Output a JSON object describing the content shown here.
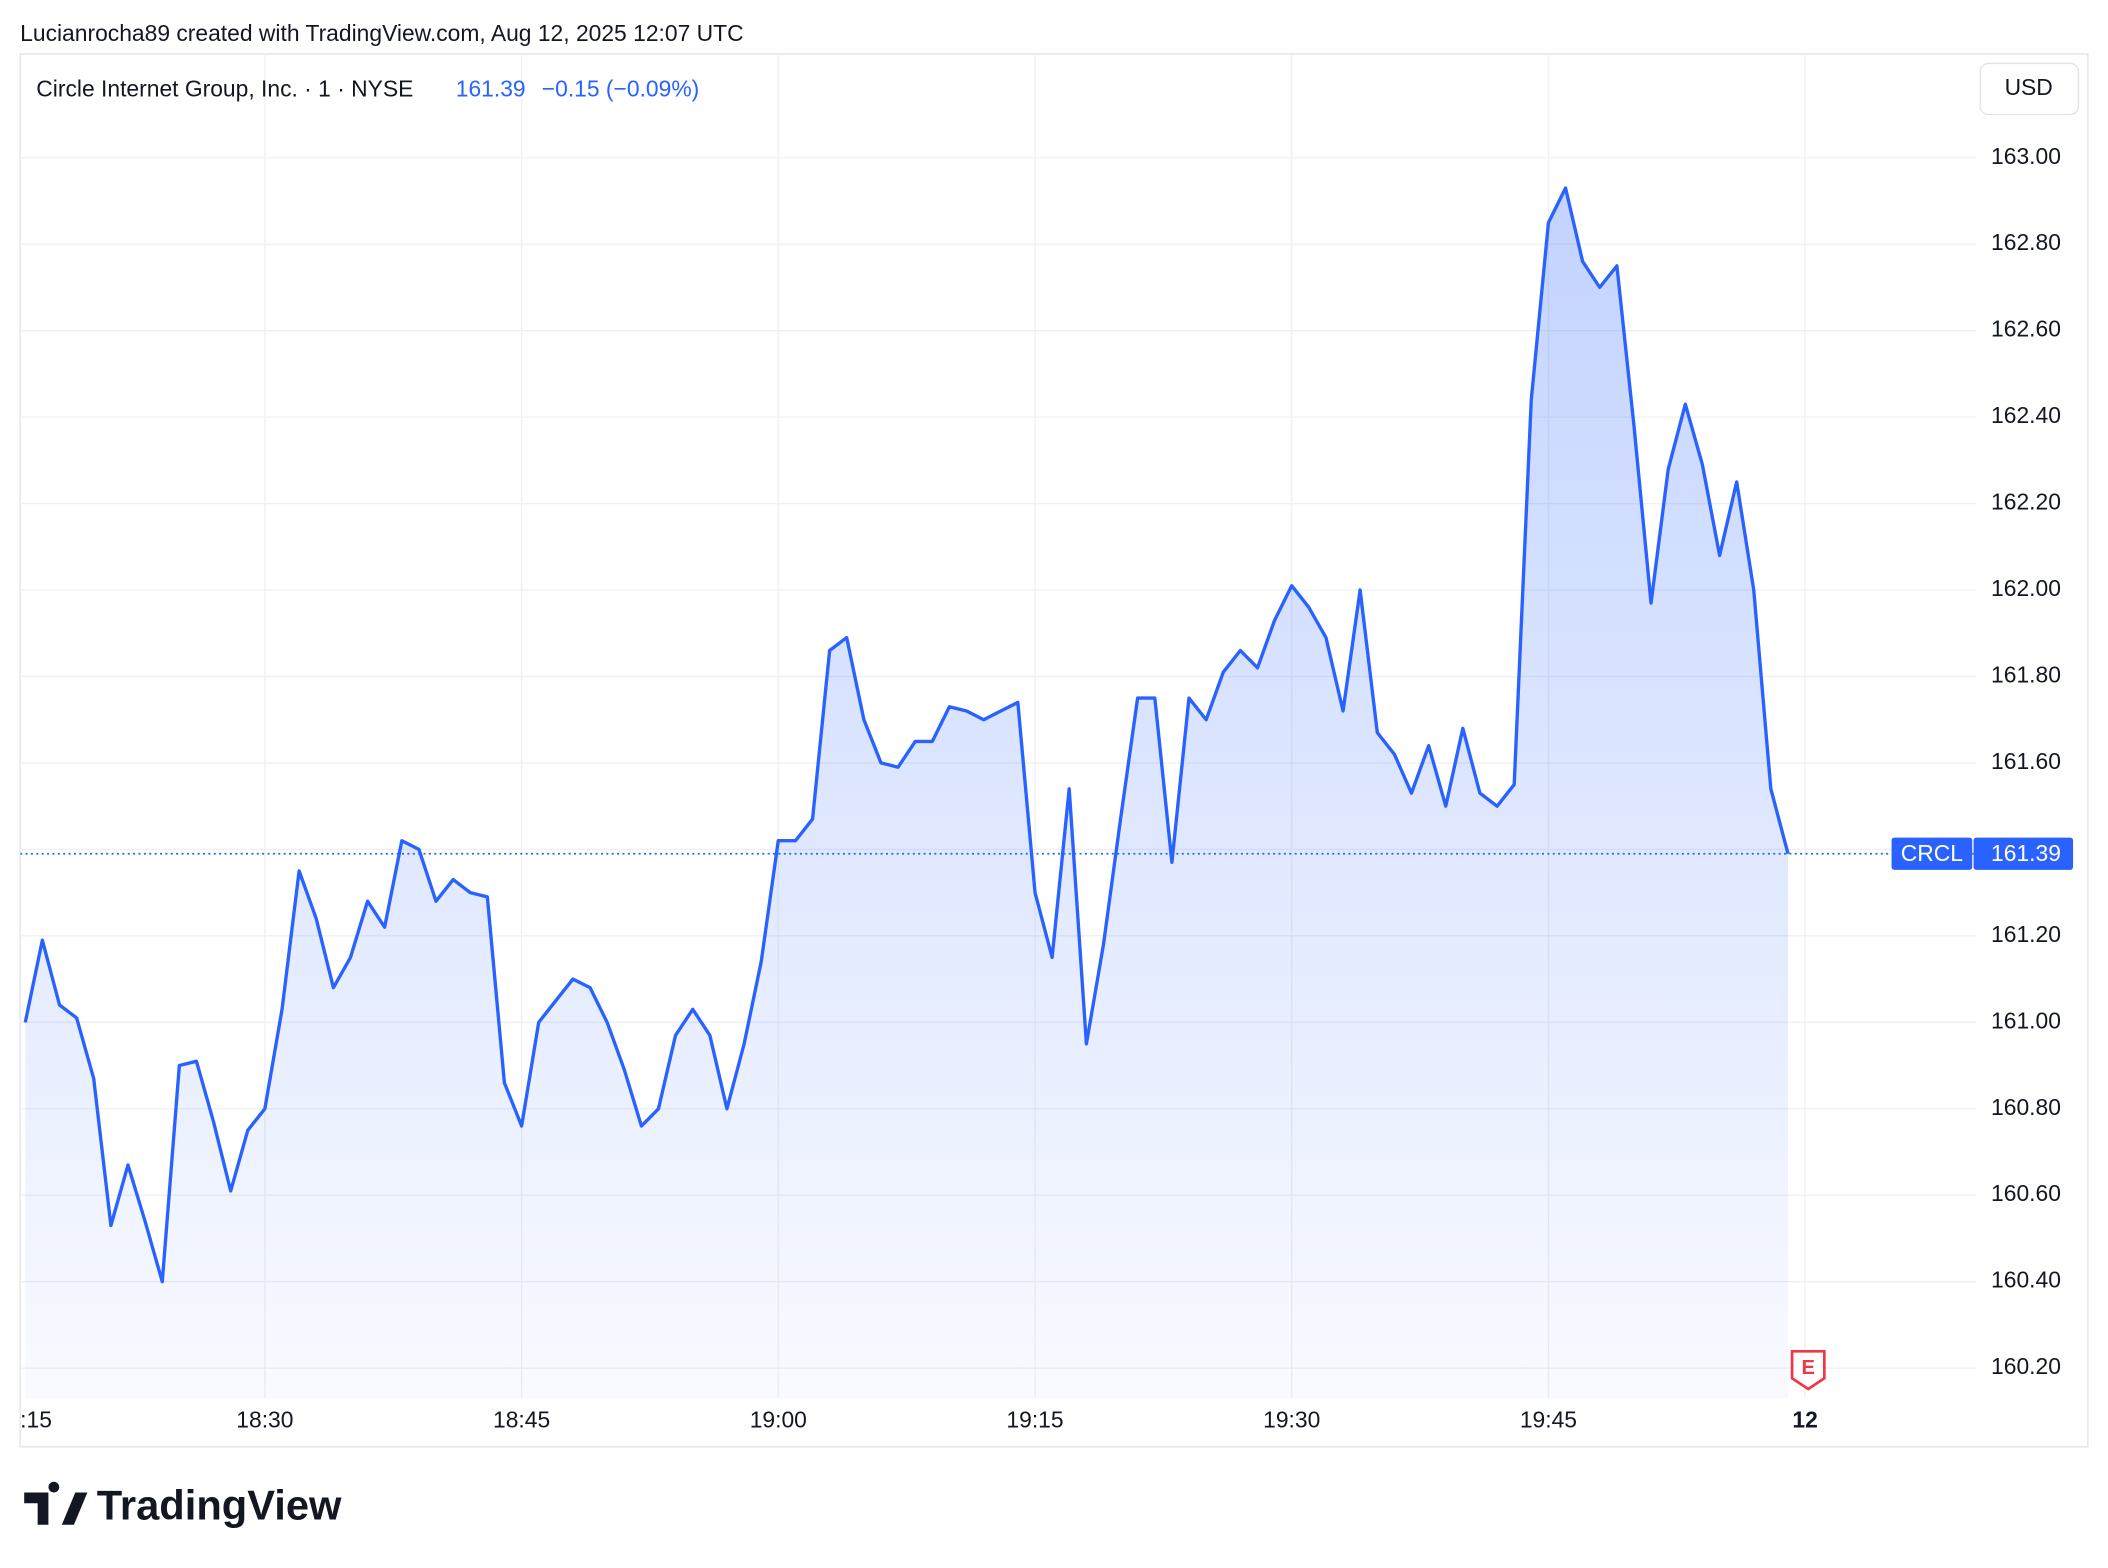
{
  "header": {
    "attribution": "Lucianrocha89 created with TradingView.com, Aug 12, 2025 12:07 UTC"
  },
  "logo": {
    "text": "TradingView"
  },
  "chart_data": {
    "type": "area",
    "symbol_name": "Circle Internet Group, Inc. · 1 · NYSE",
    "change": "−0.15 (−0.09%)",
    "currency": "USD",
    "ticker": "CRCL",
    "earnings_marker": "E",
    "x": [
      1096,
      1097,
      1098,
      1099,
      1100,
      1101,
      1102,
      1103,
      1104,
      1105,
      1106,
      1107,
      1108,
      1109,
      1110,
      1111,
      1112,
      1113,
      1114,
      1115,
      1116,
      1117,
      1118,
      1119,
      1120,
      1121,
      1122,
      1123,
      1124,
      1125,
      1126,
      1127,
      1128,
      1129,
      1130,
      1131,
      1132,
      1133,
      1134,
      1135,
      1136,
      1137,
      1138,
      1139,
      1140,
      1141,
      1142,
      1143,
      1144,
      1145,
      1146,
      1147,
      1148,
      1149,
      1150,
      1151,
      1152,
      1153,
      1154,
      1155,
      1156,
      1157,
      1158,
      1159,
      1160,
      1161,
      1162,
      1163,
      1164,
      1165,
      1166,
      1167,
      1168,
      1169,
      1170,
      1171,
      1172,
      1173,
      1174,
      1175,
      1176,
      1177,
      1178,
      1179,
      1180,
      1181,
      1182,
      1183,
      1184,
      1185,
      1186,
      1187,
      1188,
      1189,
      1190,
      1191,
      1192,
      1193,
      1194,
      1195,
      1196,
      1197,
      1198,
      1199
    ],
    "series": [
      {
        "name": "CRCL",
        "color": "#2962ff",
        "values": [
          161.0,
          161.19,
          161.04,
          161.01,
          160.87,
          160.53,
          160.67,
          160.54,
          160.4,
          160.9,
          160.91,
          160.77,
          160.61,
          160.75,
          160.8,
          161.03,
          161.35,
          161.24,
          161.08,
          161.15,
          161.28,
          161.22,
          161.42,
          161.4,
          161.28,
          161.33,
          161.3,
          161.29,
          160.86,
          160.76,
          161.0,
          161.05,
          161.1,
          161.08,
          161.0,
          160.89,
          160.76,
          160.8,
          160.97,
          161.03,
          160.97,
          160.8,
          160.95,
          161.14,
          161.42,
          161.42,
          161.47,
          161.86,
          161.89,
          161.7,
          161.6,
          161.59,
          161.65,
          161.65,
          161.73,
          161.72,
          161.7,
          161.72,
          161.74,
          161.3,
          161.15,
          161.54,
          160.95,
          161.18,
          161.47,
          161.75,
          161.75,
          161.37,
          161.75,
          161.7,
          161.81,
          161.86,
          161.82,
          161.93,
          162.01,
          161.96,
          161.89,
          161.72,
          162.0,
          161.67,
          161.62,
          161.53,
          161.64,
          161.5,
          161.68,
          161.53,
          161.5,
          161.55,
          162.44,
          162.85,
          162.93,
          162.76,
          162.7,
          162.75,
          162.38,
          161.97,
          162.28,
          162.43,
          162.29,
          162.08,
          162.25,
          162.0,
          161.54,
          161.39
        ]
      }
    ],
    "xlim": [
      1095.7,
      1210
    ],
    "xticks": [
      {
        "value": 1095,
        "label": ":15"
      },
      {
        "value": 1110,
        "label": "18:30"
      },
      {
        "value": 1125,
        "label": "18:45"
      },
      {
        "value": 1140,
        "label": "19:00"
      },
      {
        "value": 1155,
        "label": "19:15"
      },
      {
        "value": 1170,
        "label": "19:30"
      },
      {
        "value": 1185,
        "label": "19:45"
      },
      {
        "value": 1200,
        "label": "12"
      }
    ],
    "ylim": [
      160.13,
      163.24
    ],
    "yticks": [
      {
        "value": 160.2,
        "label": "160.20"
      },
      {
        "value": 160.4,
        "label": "160.40"
      },
      {
        "value": 160.6,
        "label": "160.60"
      },
      {
        "value": 160.8,
        "label": "160.80"
      },
      {
        "value": 161,
        "label": "161.00"
      },
      {
        "value": 161.2,
        "label": "161.20"
      },
      {
        "value": 161.4,
        "label": "161.40"
      },
      {
        "value": 161.6,
        "label": "161.60"
      },
      {
        "value": 161.8,
        "label": "161.80"
      },
      {
        "value": 162,
        "label": "162.00"
      },
      {
        "value": 162.2,
        "label": "162.20"
      },
      {
        "value": 162.4,
        "label": "162.40"
      },
      {
        "value": 162.6,
        "label": "162.60"
      },
      {
        "value": 162.8,
        "label": "162.80"
      },
      {
        "value": 163,
        "label": "163.00"
      }
    ],
    "grid": true
  }
}
